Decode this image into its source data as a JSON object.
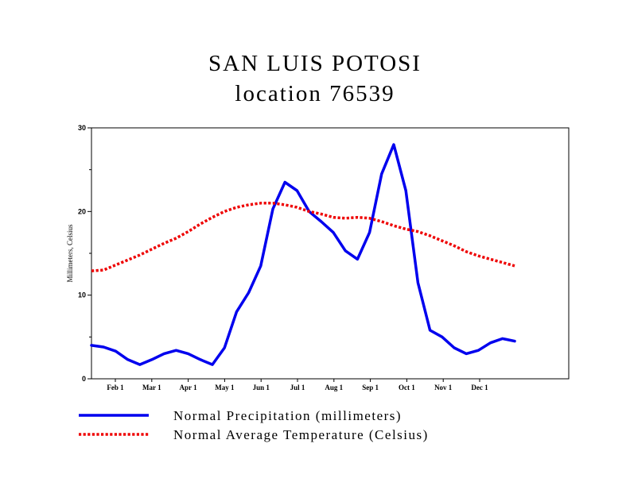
{
  "chart_data": {
    "type": "line",
    "title": "SAN LUIS POTOSI",
    "subtitle": "location 76539",
    "ylabel": "Millimeters, Celsius",
    "xlabel": "",
    "ylim": [
      0,
      30
    ],
    "yticks": [
      0,
      10,
      20,
      30
    ],
    "x_tick_labels": [
      "Feb 1",
      "Mar 1",
      "Apr 1",
      "May 1",
      "Jun 1",
      "Jul 1",
      "Aug 1",
      "Sep 1",
      "Oct 1",
      "Nov 1",
      "Dec 1"
    ],
    "grid": false,
    "legend_position": "bottom",
    "series": [
      {
        "name": "Normal Precipitation (millimeters)",
        "color": "#0000ee",
        "style": "solid",
        "values": [
          4.0,
          3.8,
          3.3,
          2.3,
          1.7,
          2.3,
          3.0,
          3.4,
          3.0,
          2.3,
          1.7,
          3.7,
          8.0,
          10.3,
          13.5,
          20.3,
          23.5,
          22.5,
          20.0,
          18.8,
          17.5,
          15.3,
          14.3,
          17.5,
          24.5,
          28.0,
          22.5,
          11.5,
          5.8,
          5.0,
          3.7,
          3.0,
          3.4,
          4.3,
          4.8,
          4.5
        ]
      },
      {
        "name": "Normal Average Temperature (Celsius)",
        "color": "#ee0000",
        "style": "dotted",
        "values": [
          12.9,
          13.0,
          13.6,
          14.2,
          14.8,
          15.5,
          16.2,
          16.8,
          17.6,
          18.5,
          19.3,
          20.0,
          20.5,
          20.8,
          21.0,
          21.0,
          20.8,
          20.5,
          20.0,
          19.7,
          19.3,
          19.2,
          19.3,
          19.2,
          18.8,
          18.3,
          17.9,
          17.6,
          17.1,
          16.5,
          15.9,
          15.2,
          14.7,
          14.3,
          13.9,
          13.5
        ]
      }
    ]
  }
}
